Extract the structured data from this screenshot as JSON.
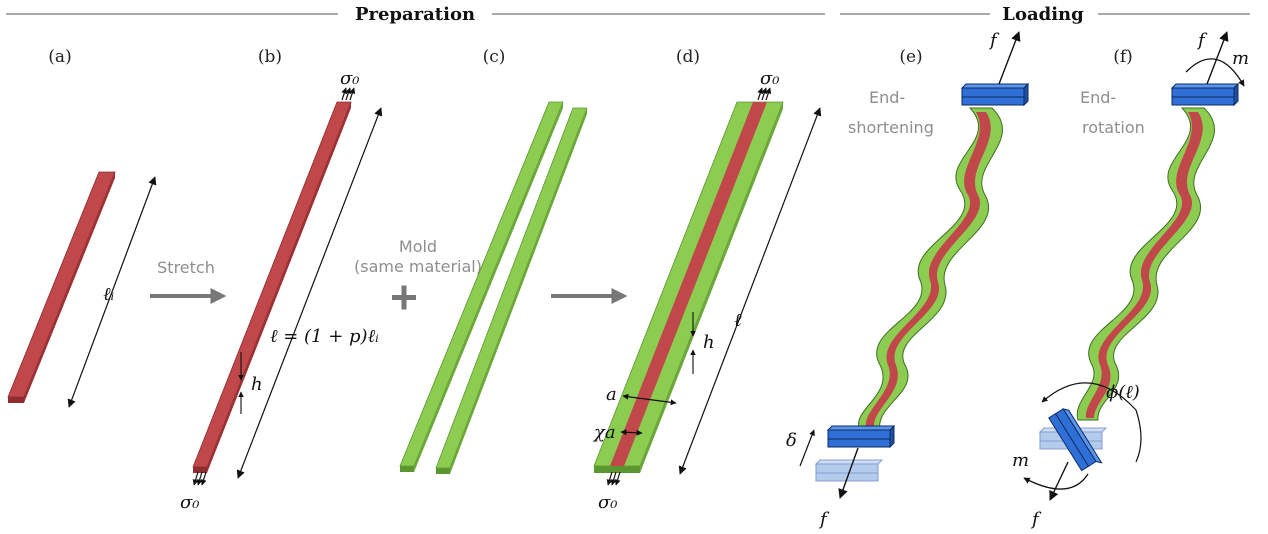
{
  "headers": {
    "preparation": "Preparation",
    "loading": "Loading"
  },
  "panels": [
    "(a)",
    "(b)",
    "(c)",
    "(d)",
    "(e)",
    "(f)"
  ],
  "steps": {
    "stretch": "Stretch",
    "mold_line1": "Mold",
    "mold_line2": "(same material)",
    "plus": "+"
  },
  "loading_modes": {
    "e_line1": "End-",
    "e_line2": "shortening",
    "f_line1": "End-",
    "f_line2": "rotation"
  },
  "symbols": {
    "sigma0": "σ₀",
    "li": "ℓᵢ",
    "l_stretched": "ℓ = (1 + p)ℓᵢ",
    "h": "h",
    "l": "ℓ",
    "a": "a",
    "chi_a": "χa",
    "f": "f",
    "m": "m",
    "delta": "δ",
    "phi": "ϕ(ℓ)"
  },
  "colors": {
    "red_strip": "#c0474a",
    "red_dark": "#8e2c30",
    "green_strip": "#8ccc50",
    "green_dark": "#5c9630",
    "clamp_blue": "#2f6fd6",
    "clamp_light": "#a9c3ec",
    "gray_arrow": "#777777"
  }
}
